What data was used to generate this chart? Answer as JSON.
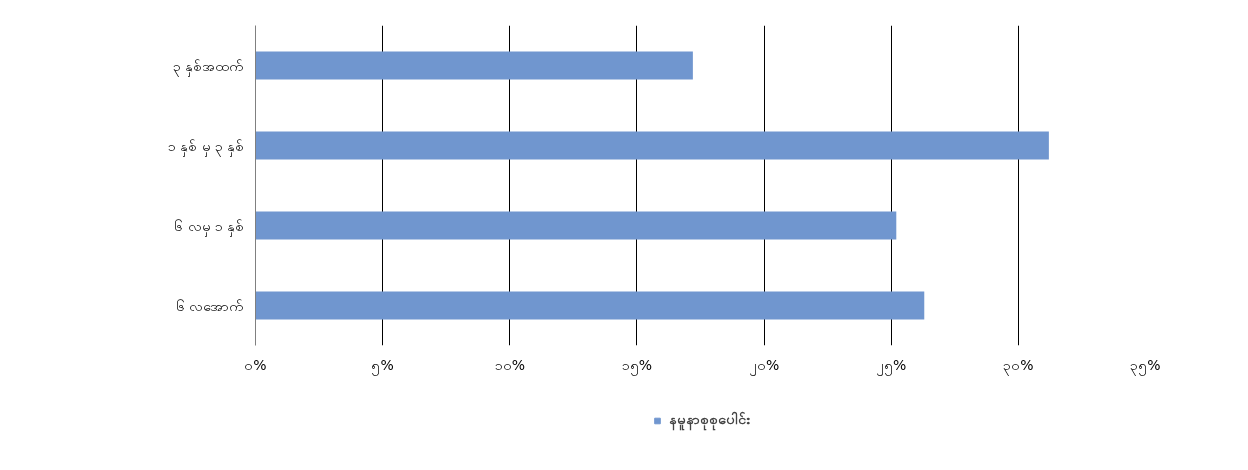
{
  "chart_data": {
    "type": "bar",
    "orientation": "horizontal",
    "categories": [
      "၃ နှစ်အထက်",
      "၁ နှစ် မှ ၃ နှစ်",
      "၆ လမှ ၁ နှစ်",
      "၆ လအောက်"
    ],
    "series": [
      {
        "name": "နမူနာစုစုပေါင်း",
        "color": "#7096cf",
        "values": [
          17.2,
          31.2,
          25.2,
          26.3
        ]
      }
    ],
    "xlim": [
      0,
      35
    ],
    "xticks": [
      {
        "value": 0,
        "label": "၀%"
      },
      {
        "value": 5,
        "label": "၅%"
      },
      {
        "value": 10,
        "label": "၁၀%"
      },
      {
        "value": 15,
        "label": "၁၅%"
      },
      {
        "value": 20,
        "label": "၂၀%"
      },
      {
        "value": 25,
        "label": "၂၅%"
      },
      {
        "value": 30,
        "label": "၃၀%"
      },
      {
        "value": 35,
        "label": "၃၅%"
      }
    ],
    "grid": "x",
    "legend": "bottom"
  }
}
